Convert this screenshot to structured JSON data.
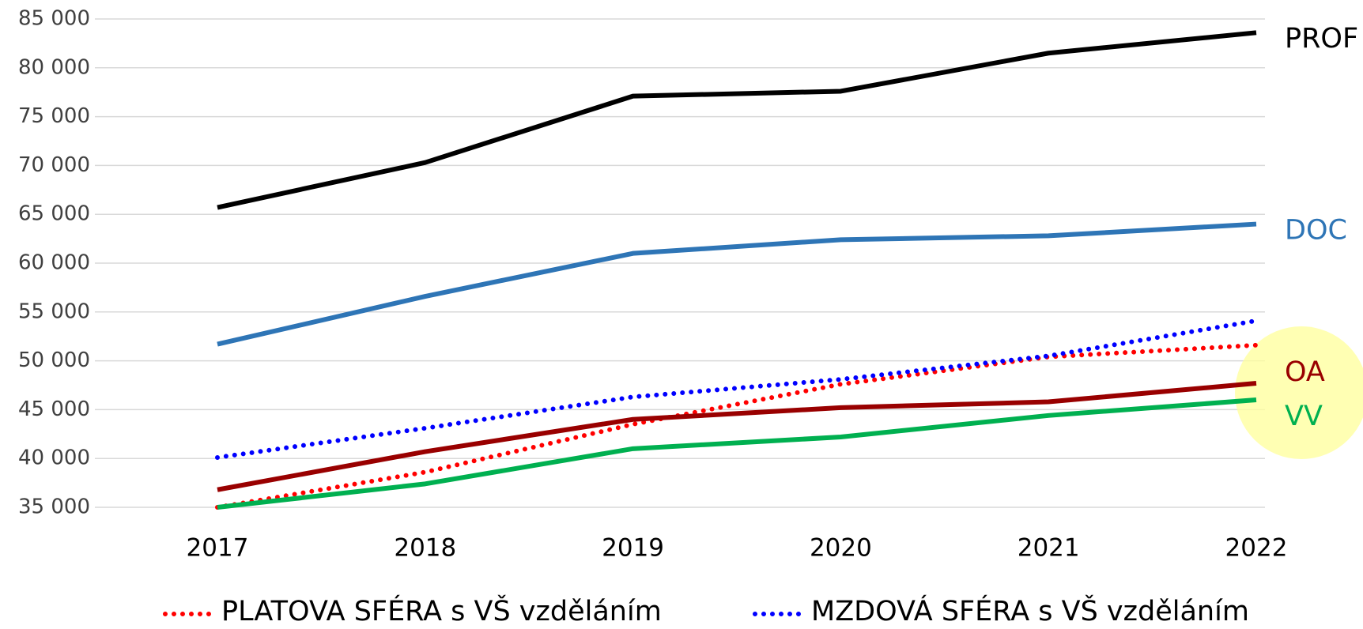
{
  "chart_data": {
    "type": "line",
    "categories": [
      "2017",
      "2018",
      "2019",
      "2020",
      "2021",
      "2022"
    ],
    "series": [
      {
        "name": "PROF",
        "color": "#000000",
        "dotted": false,
        "legend": false,
        "values": [
          65700,
          70300,
          77100,
          77600,
          81500,
          83600
        ]
      },
      {
        "name": "DOC",
        "color": "#2e75b6",
        "dotted": false,
        "legend": false,
        "values": [
          51700,
          56600,
          61000,
          62400,
          62800,
          64000
        ]
      },
      {
        "name": "PLATOVA SFÉRA s VŠ vzděláním",
        "color": "#ff0000",
        "dotted": true,
        "legend": true,
        "values": [
          35000,
          38600,
          43500,
          47600,
          50400,
          51600
        ]
      },
      {
        "name": "MZDOVÁ SFÉRA s VŠ vzděláním",
        "color": "#0000ff",
        "dotted": true,
        "legend": true,
        "values": [
          40100,
          43100,
          46300,
          48100,
          50500,
          54100
        ]
      },
      {
        "name": "OA",
        "color": "#990000",
        "dotted": false,
        "legend": false,
        "values": [
          36800,
          40700,
          44000,
          45200,
          45800,
          47700
        ]
      },
      {
        "name": "VV",
        "color": "#00b050",
        "dotted": false,
        "legend": false,
        "values": [
          35000,
          37400,
          41000,
          42200,
          44400,
          46000
        ]
      }
    ],
    "ylim": [
      35000,
      85000
    ],
    "yticks": [
      {
        "value": 35000,
        "label": "35 000"
      },
      {
        "value": 40000,
        "label": "40 000"
      },
      {
        "value": 45000,
        "label": "45 000"
      },
      {
        "value": 50000,
        "label": "50 000"
      },
      {
        "value": 55000,
        "label": "55 000"
      },
      {
        "value": 60000,
        "label": "60 000"
      },
      {
        "value": 65000,
        "label": "65 000"
      },
      {
        "value": 70000,
        "label": "70 000"
      },
      {
        "value": 75000,
        "label": "75 000"
      },
      {
        "value": 80000,
        "label": "80 000"
      },
      {
        "value": 85000,
        "label": "85 000"
      }
    ],
    "grid": true,
    "legend": "bottom"
  }
}
